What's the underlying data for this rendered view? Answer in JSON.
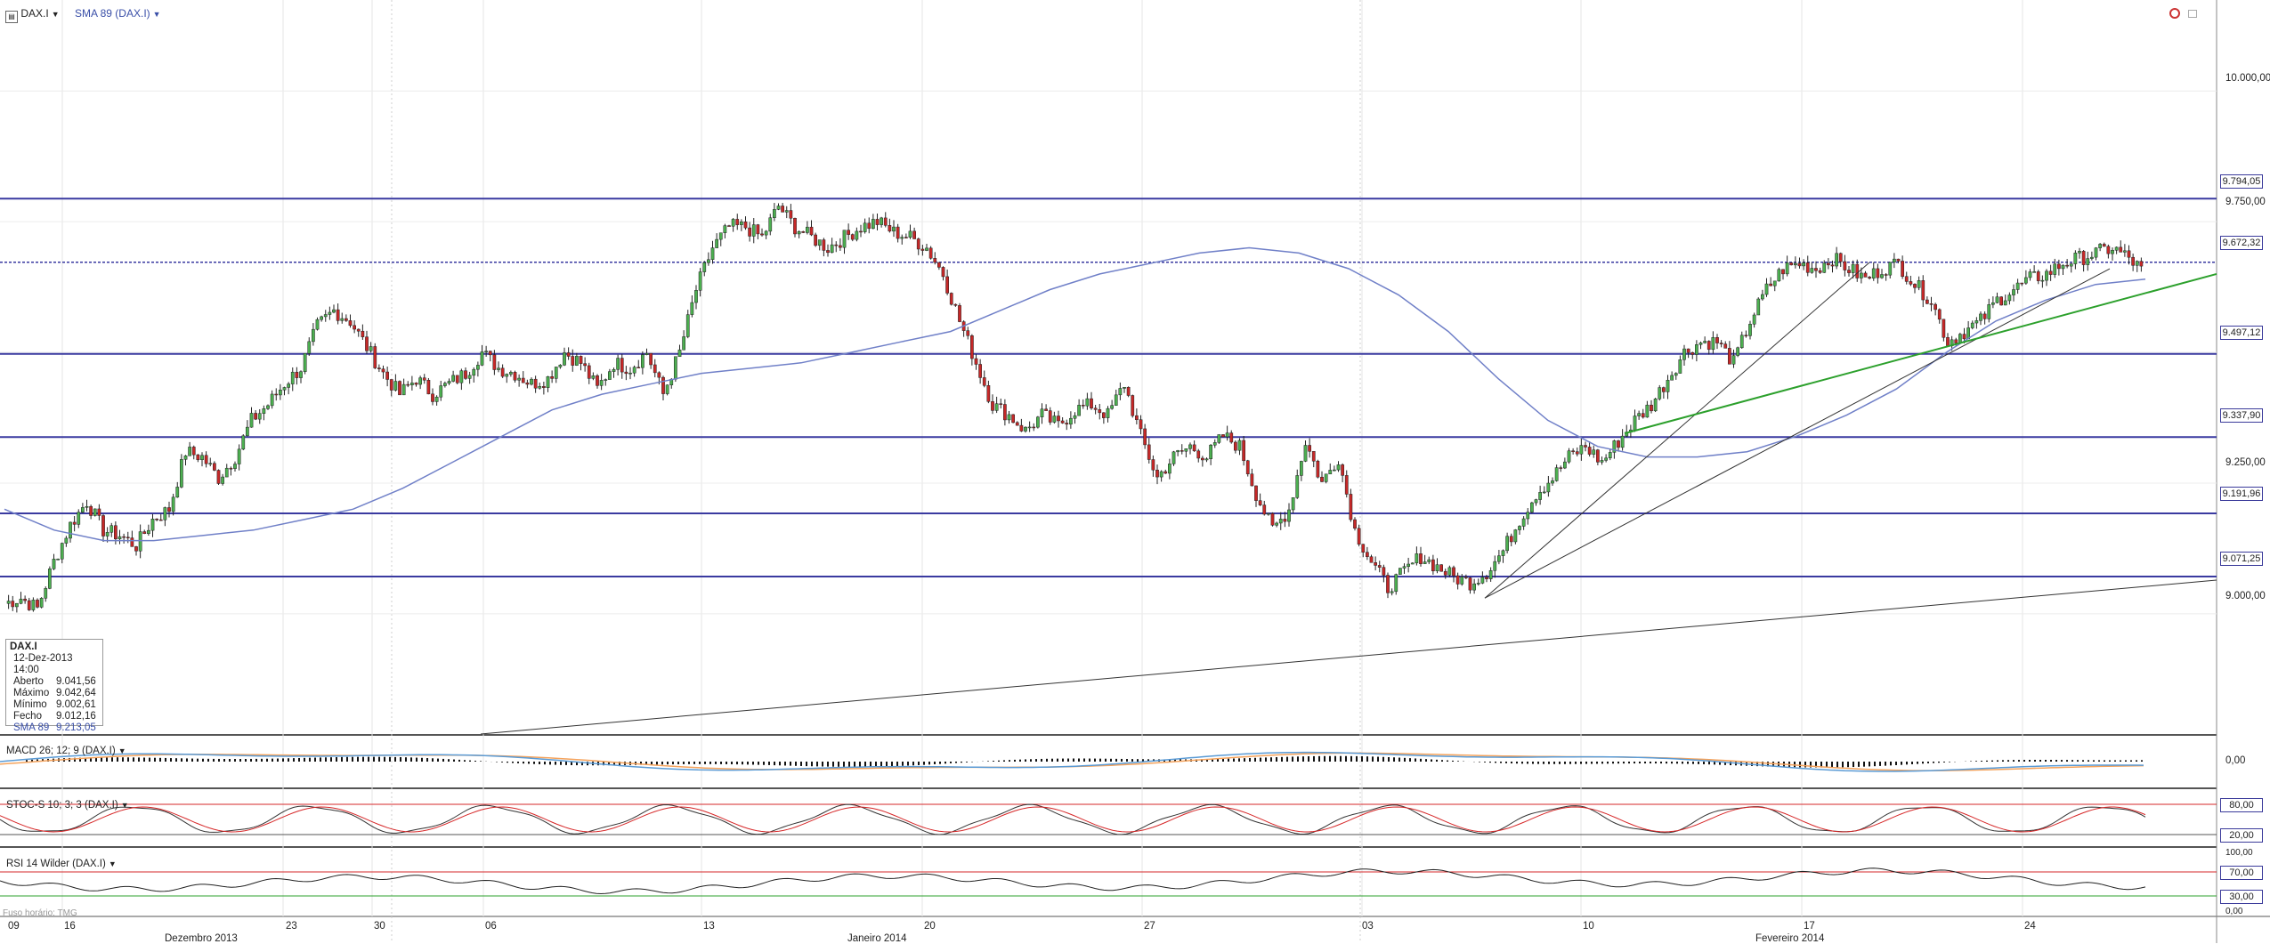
{
  "header": {
    "symbol": "DAX.I",
    "indicator": "SMA 89 (DAX.I)"
  },
  "info_box": {
    "title": "DAX.I",
    "datetime": "12-Dez-2013 14:00",
    "rows": [
      {
        "label": "Aberto",
        "value": "9.041,56"
      },
      {
        "label": "Máximo",
        "value": "9.042,64"
      },
      {
        "label": "Mínimo",
        "value": "9.002,61"
      },
      {
        "label": "Fecho",
        "value": "9.012,16"
      },
      {
        "label": "SMA 89",
        "value": "9.213,05"
      }
    ]
  },
  "panes": {
    "macd": {
      "label": "MACD 26; 12; 9 (DAX.I)",
      "zero": "0,00"
    },
    "stoc": {
      "label": "STOC-S 10; 3; 3 (DAX.I)",
      "hi": "80,00",
      "lo": "20,00"
    },
    "rsi": {
      "label": "RSI 14 Wilder (DAX.I)",
      "t100": "100,00",
      "t70": "70,00",
      "t30": "30,00",
      "t0": "0,00"
    }
  },
  "source_note": "Fuso horário: TMG",
  "axis_ticks": [
    "10.000,00",
    "9.750,00",
    "9.250,00",
    "9.000,00"
  ],
  "level_tags": [
    "9.794,05",
    "9.672,32",
    "9.497,12",
    "9.337,90",
    "9.191,96",
    "9.071,25"
  ],
  "x_day_labels": [
    "09",
    "16",
    "23",
    "30",
    "06",
    "13",
    "20",
    "27",
    "03",
    "10",
    "17",
    "24"
  ],
  "x_month_labels": [
    "Dezembro 2013",
    "Janeiro 2014",
    "Fevereiro 2014"
  ],
  "colors": {
    "up_candle": "#4caf50",
    "down_candle": "#c62828",
    "horizontal_levels": "#3a3aa0",
    "sma": "#7080c8",
    "green_trendline": "#2ca02c",
    "macd_line": "#5b9bd5",
    "macd_signal": "#f5a35c",
    "stoc_k": "#333333",
    "stoc_d": "#d62728"
  },
  "chart_data": {
    "type": "candlestick",
    "symbol": "DAX.I",
    "timeframe": "intraday (4h)",
    "y_range": [
      8770,
      10140
    ],
    "x": [
      "09",
      "16",
      "23",
      "30",
      "06",
      "13",
      "20",
      "27",
      "03",
      "10",
      "17",
      "24"
    ],
    "horizontal_levels": [
      9794.05,
      9672.32,
      9497.12,
      9337.9,
      9191.96,
      9071.25
    ],
    "overlay": "SMA 89",
    "close_path": [
      9020,
      9030,
      9010,
      9100,
      9170,
      9215,
      9160,
      9150,
      9130,
      9180,
      9200,
      9310,
      9300,
      9260,
      9300,
      9370,
      9400,
      9440,
      9470,
      9550,
      9580,
      9560,
      9510,
      9460,
      9420,
      9450,
      9420,
      9440,
      9460,
      9500,
      9470,
      9460,
      9440,
      9450,
      9500,
      9480,
      9430,
      9480,
      9470,
      9500,
      9420,
      9500,
      9620,
      9700,
      9740,
      9740,
      9720,
      9780,
      9740,
      9720,
      9700,
      9720,
      9740,
      9750,
      9730,
      9720,
      9700,
      9650,
      9560,
      9480,
      9400,
      9380,
      9350,
      9380,
      9360,
      9390,
      9400,
      9380,
      9440,
      9340,
      9260,
      9300,
      9320,
      9300,
      9340,
      9320,
      9230,
      9160,
      9200,
      9330,
      9250,
      9300,
      9160,
      9100,
      9050,
      9080,
      9110,
      9090,
      9070,
      9060,
      9080,
      9120,
      9180,
      9230,
      9260,
      9300,
      9320,
      9290,
      9330,
      9370,
      9400,
      9450,
      9500,
      9520,
      9520,
      9480,
      9560,
      9620,
      9660,
      9670,
      9660,
      9680,
      9660,
      9640,
      9660,
      9670,
      9630,
      9600,
      9520,
      9540,
      9560,
      9600,
      9620,
      9640,
      9650,
      9670,
      9680,
      9690,
      9700,
      9680,
      9650
    ],
    "sma_path": [
      9200,
      9160,
      9140,
      9140,
      9150,
      9160,
      9180,
      9200,
      9240,
      9290,
      9340,
      9390,
      9420,
      9440,
      9460,
      9470,
      9480,
      9500,
      9520,
      9540,
      9580,
      9620,
      9650,
      9670,
      9690,
      9700,
      9690,
      9660,
      9610,
      9540,
      9450,
      9370,
      9320,
      9300,
      9300,
      9310,
      9340,
      9380,
      9430,
      9500,
      9560,
      9600,
      9630,
      9640
    ]
  }
}
